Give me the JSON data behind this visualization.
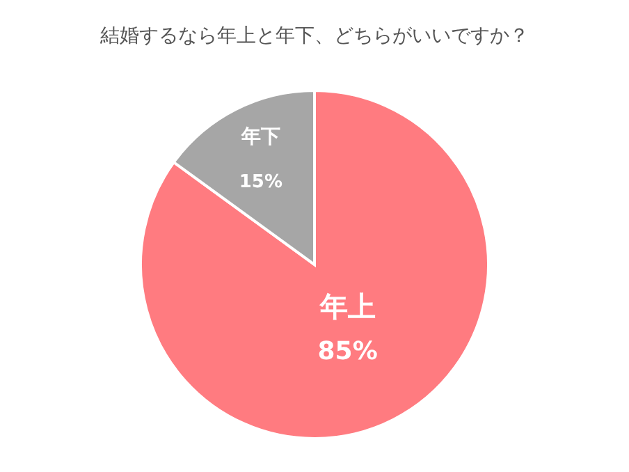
{
  "chart_data": {
    "type": "pie",
    "title": "結婚するなら年上と年下、どちらがいいですか？",
    "categories": [
      "年上",
      "年下"
    ],
    "values": [
      85,
      15
    ],
    "colors": [
      "#ff7b80",
      "#a6a6a6"
    ],
    "value_labels": [
      "85%",
      "15%"
    ]
  }
}
